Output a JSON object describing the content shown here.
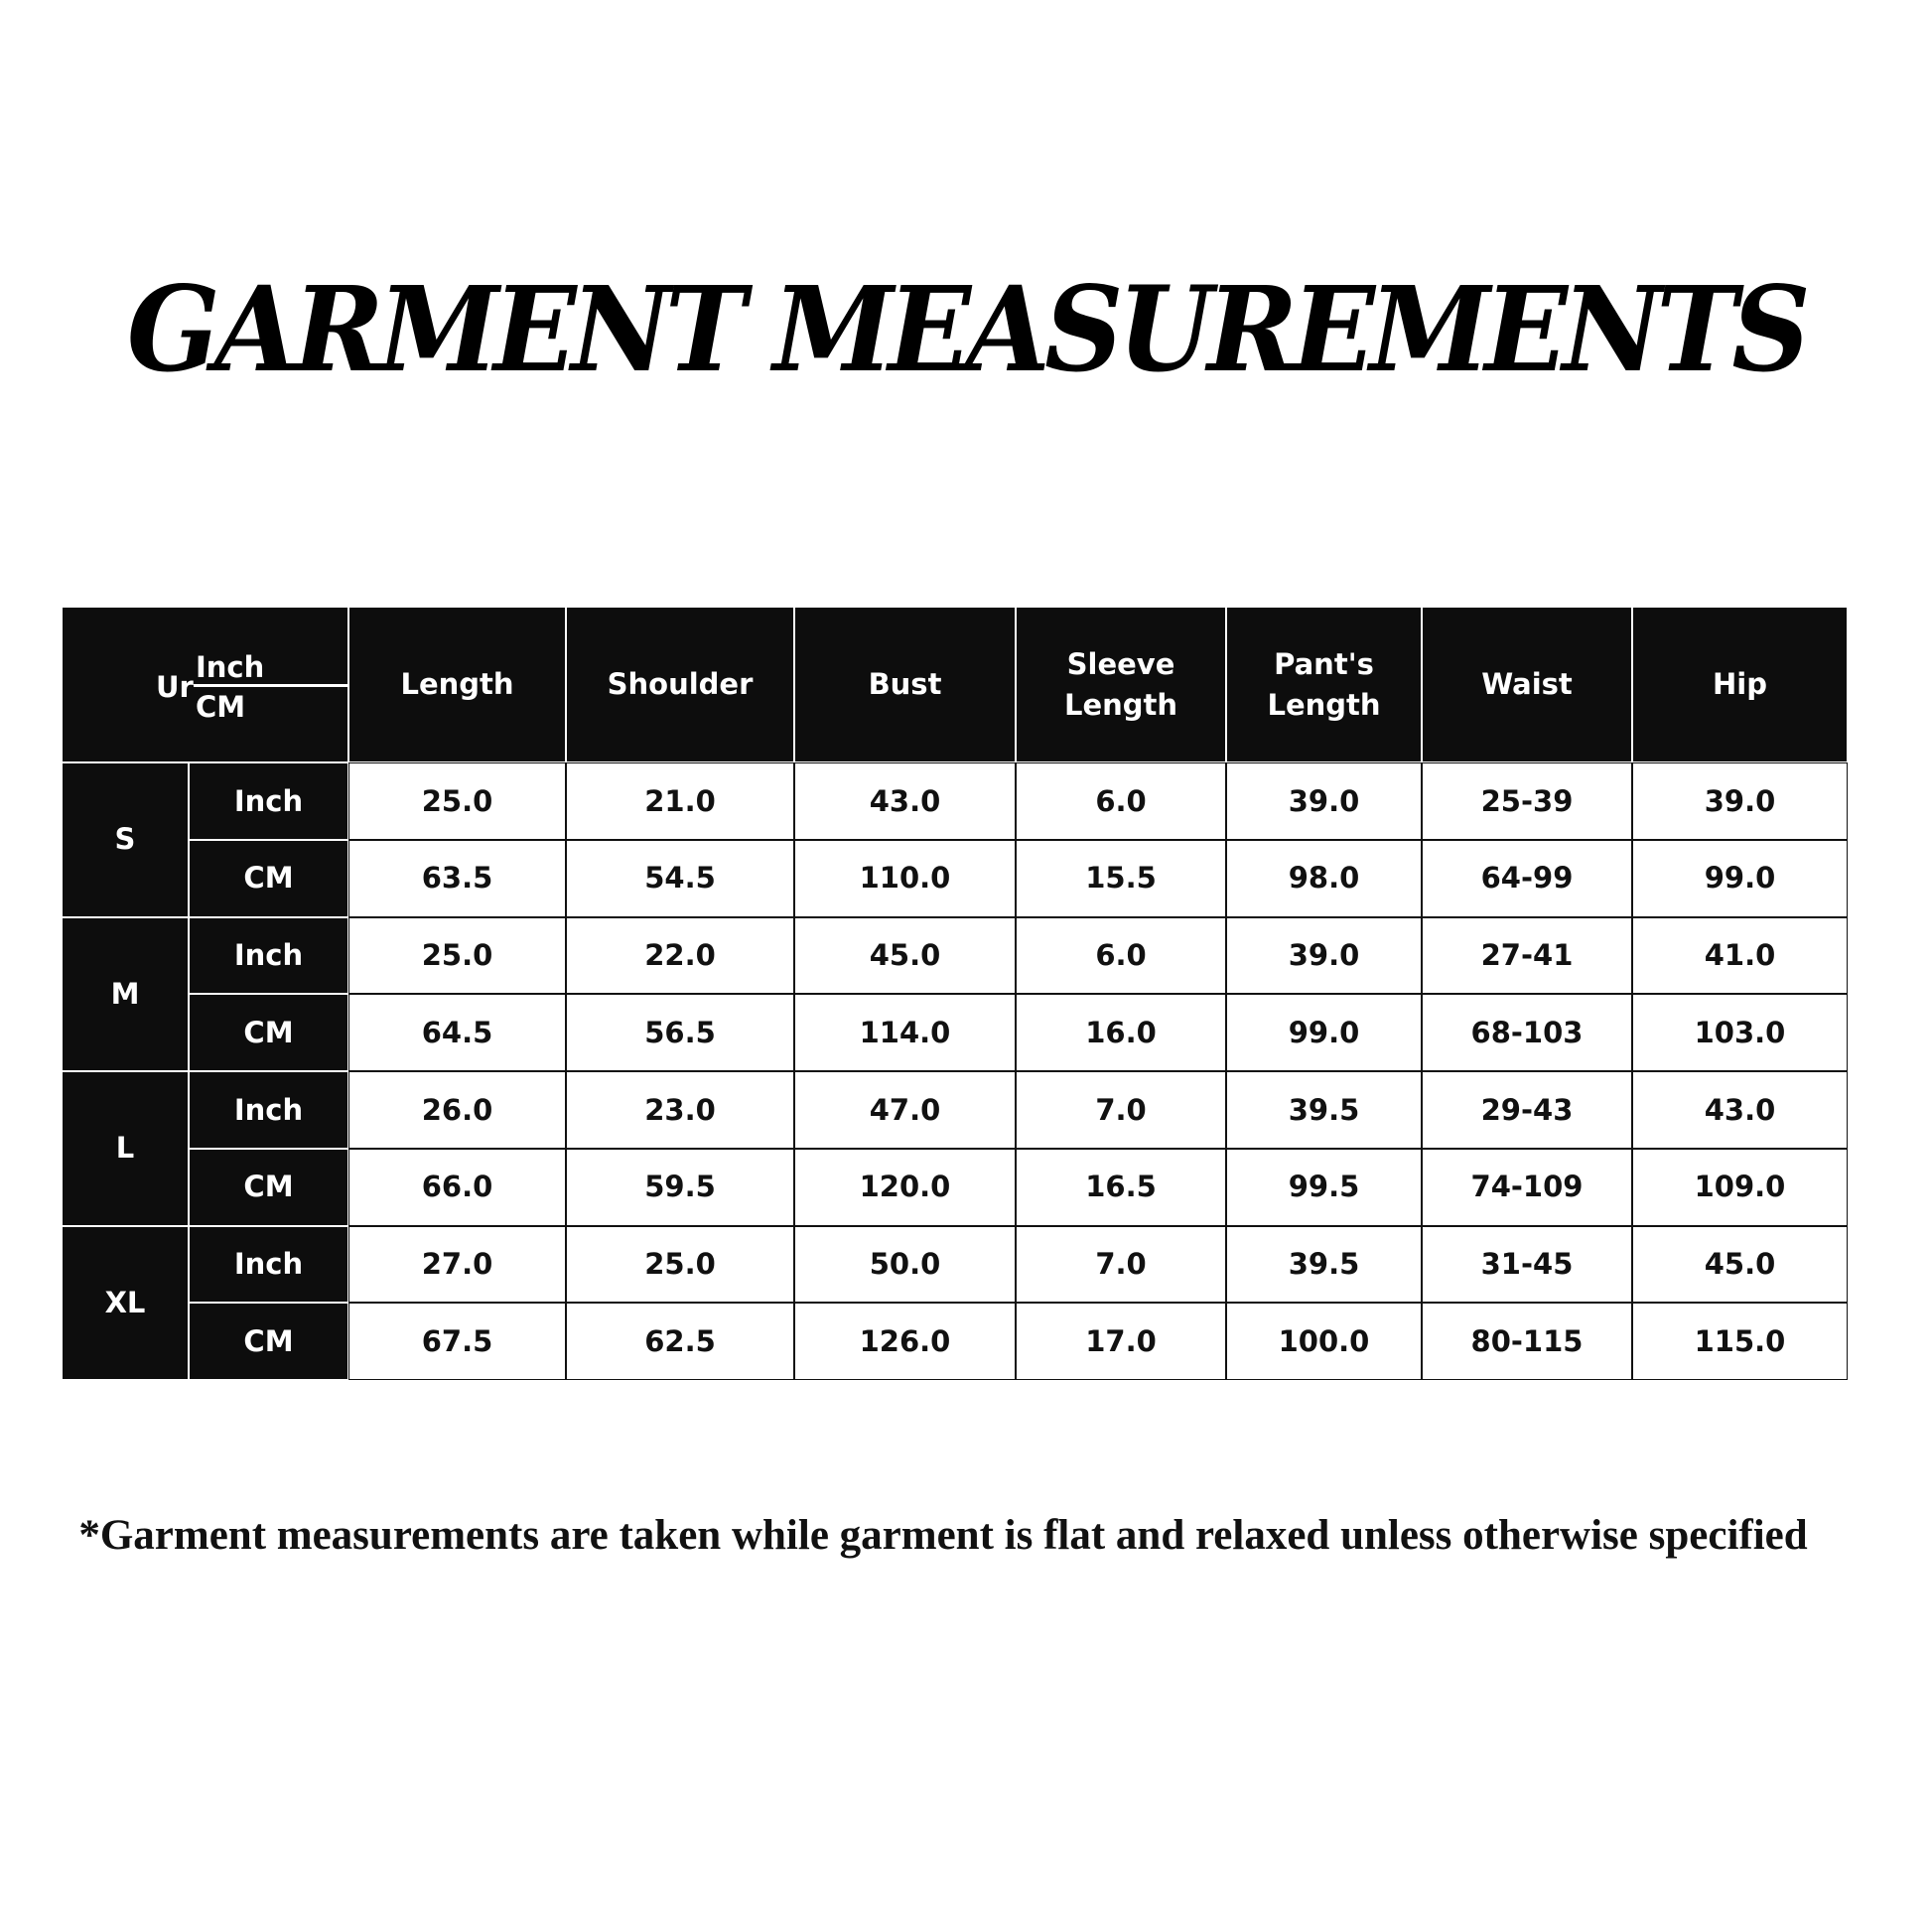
{
  "title": "GARMENT MEASUREMENTS",
  "corner": {
    "partial_label": "Ur",
    "inch": "Inch",
    "cm": "CM"
  },
  "columns": [
    "Length",
    "Shoulder",
    "Bust",
    "Sleeve Length",
    "Pant's Length",
    "Waist",
    "Hip"
  ],
  "sizes": [
    {
      "size": "S",
      "rows": [
        {
          "unit": "Inch",
          "values": [
            "25.0",
            "21.0",
            "43.0",
            "6.0",
            "39.0",
            "25-39",
            "39.0"
          ]
        },
        {
          "unit": "CM",
          "values": [
            "63.5",
            "54.5",
            "110.0",
            "15.5",
            "98.0",
            "64-99",
            "99.0"
          ]
        }
      ]
    },
    {
      "size": "M",
      "rows": [
        {
          "unit": "Inch",
          "values": [
            "25.0",
            "22.0",
            "45.0",
            "6.0",
            "39.0",
            "27-41",
            "41.0"
          ]
        },
        {
          "unit": "CM",
          "values": [
            "64.5",
            "56.5",
            "114.0",
            "16.0",
            "99.0",
            "68-103",
            "103.0"
          ]
        }
      ]
    },
    {
      "size": "L",
      "rows": [
        {
          "unit": "Inch",
          "values": [
            "26.0",
            "23.0",
            "47.0",
            "7.0",
            "39.5",
            "29-43",
            "43.0"
          ]
        },
        {
          "unit": "CM",
          "values": [
            "66.0",
            "59.5",
            "120.0",
            "16.5",
            "99.5",
            "74-109",
            "109.0"
          ]
        }
      ]
    },
    {
      "size": "XL",
      "rows": [
        {
          "unit": "Inch",
          "values": [
            "27.0",
            "25.0",
            "50.0",
            "7.0",
            "39.5",
            "31-45",
            "45.0"
          ]
        },
        {
          "unit": "CM",
          "values": [
            "67.5",
            "62.5",
            "126.0",
            "17.0",
            "100.0",
            "80-115",
            "115.0"
          ]
        }
      ]
    }
  ],
  "footnote": "*Garment measurements are taken while garment is flat and relaxed unless otherwise specified"
}
